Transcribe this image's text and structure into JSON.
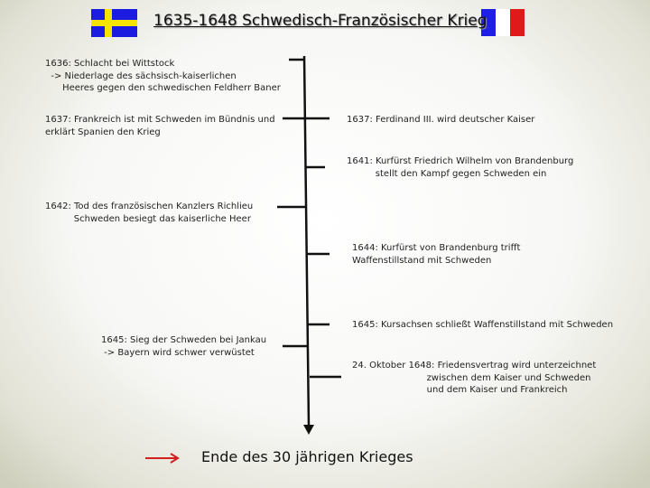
{
  "title": "1635-1648 Schwedisch-Französischer Krieg",
  "flags": {
    "left": "sweden-flag",
    "right": "france-flag"
  },
  "colors": {
    "sweden_blue": "#1c1ce0",
    "sweden_yellow": "#f4e400",
    "france_blue": "#1e1ee6",
    "france_red": "#e01a1a",
    "arrow": "#d02020"
  },
  "events_left": [
    {
      "text": "1636: Schlacht bei Wittstock\n  -> Niederlage des sächsisch-kaiserlichen\n      Heeres gegen den schwedischen Feldherr Baner"
    },
    {
      "text": "1637: Frankreich ist mit Schweden im Bündnis und\nerklärt Spanien den Krieg"
    },
    {
      "text": "1642: Tod des französischen Kanzlers Richlieu\n          Schweden besiegt das kaiserliche Heer"
    },
    {
      "text": "1645: Sieg der Schweden bei Jankau\n -> Bayern wird schwer verwüstet"
    }
  ],
  "events_right": [
    {
      "text": "1637: Ferdinand III. wird deutscher Kaiser"
    },
    {
      "text": "1641: Kurfürst Friedrich Wilhelm von Brandenburg\n          stellt den Kampf gegen Schweden ein"
    },
    {
      "text": "1644: Kurfürst von Brandenburg trifft\nWaffenstillstand mit Schweden"
    },
    {
      "text": "1645: Kursachsen schließt Waffenstillstand mit Schweden"
    },
    {
      "text": "24. Oktober 1648: Friedensvertrag wird unterzeichnet\n                          zwischen dem Kaiser und Schweden\n                          und dem Kaiser und Frankreich"
    }
  ],
  "footer": "Ende des 30 jährigen Krieges"
}
